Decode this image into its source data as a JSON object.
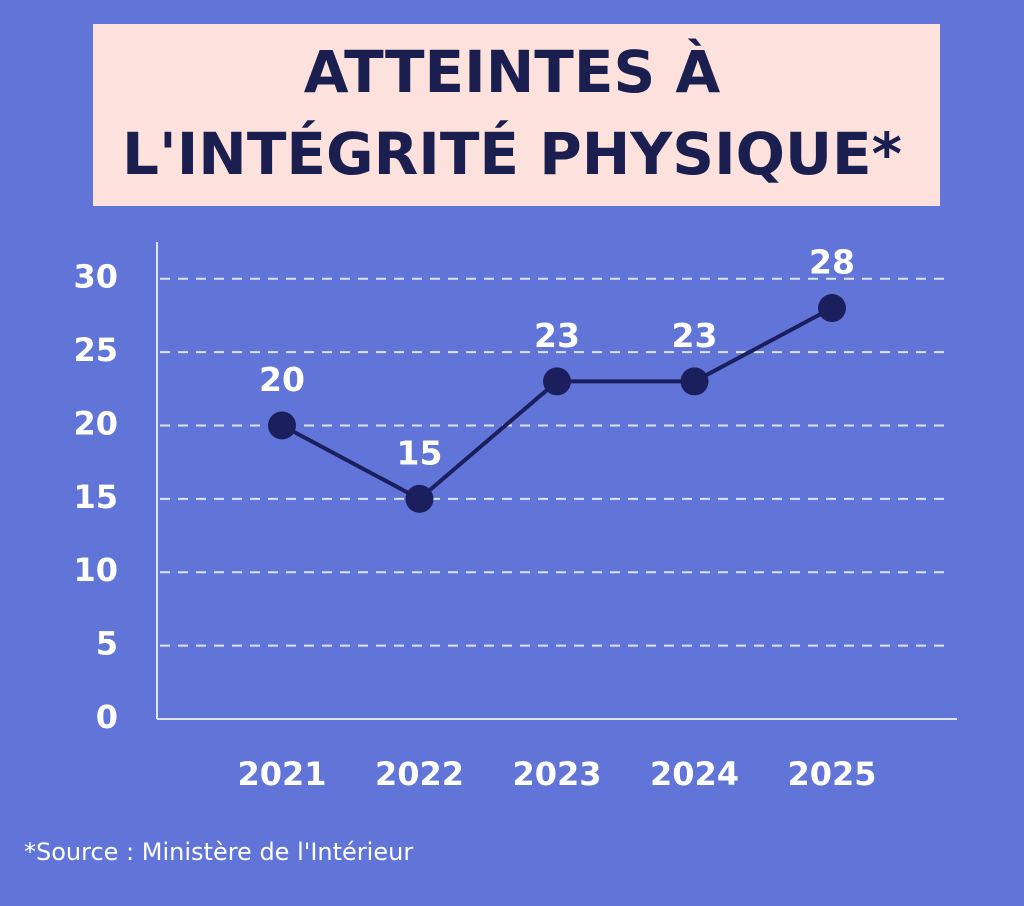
{
  "chart_data": {
    "type": "line",
    "title": [
      "ATTEINTES À",
      "L'INTÉGRITÉ PHYSIQUE*"
    ],
    "categories": [
      "2021",
      "2022",
      "2023",
      "2024",
      "2025"
    ],
    "values": [
      20,
      15,
      23,
      23,
      28
    ],
    "color": "#1b1f5e",
    "ylim": [
      0,
      32.5
    ],
    "yticks": [
      0,
      5,
      10,
      15,
      20,
      25,
      30
    ],
    "grid": true,
    "source": "*Source : Ministère de l'Intérieur"
  }
}
